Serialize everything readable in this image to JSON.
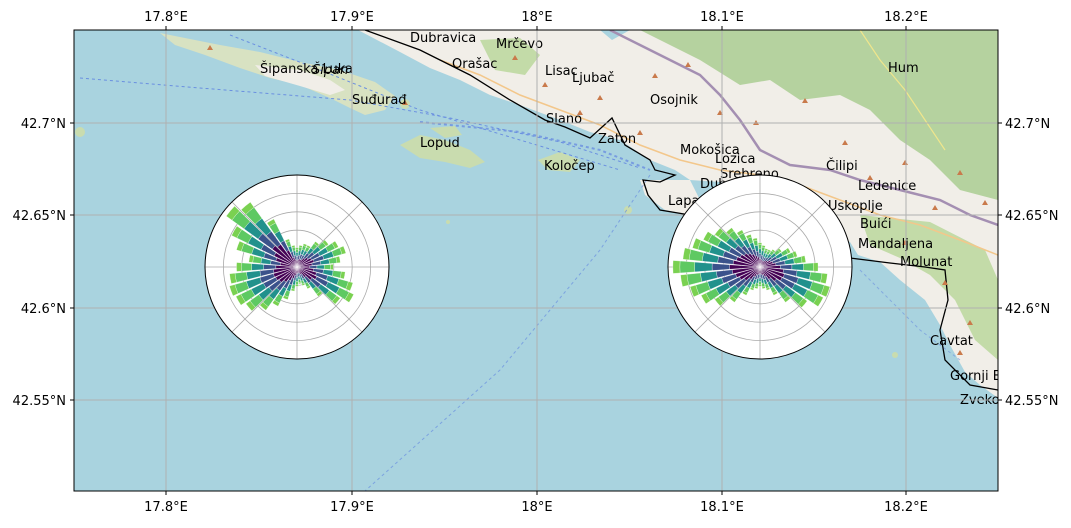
{
  "map": {
    "x_ticks": [
      "17.8°E",
      "17.9°E",
      "18°E",
      "18.1°E",
      "18.2°E"
    ],
    "y_ticks": [
      "42.7°N",
      "42.65°N",
      "42.6°N",
      "42.55°N"
    ],
    "colors": {
      "sea": "#a9d3df",
      "land": "#f1eee8",
      "forest": "#b5d29f",
      "grid": "#b0b0b0",
      "border": "#000000",
      "ferry": "#6a8fe0",
      "rose_ring": "#aaaaaa"
    },
    "place_labels": {
      "sipan": "Šipan",
      "sudurad": "Suđurađ",
      "lopud": "Lopud",
      "kolocep": "Koločep",
      "lapad": "Lapad",
      "dubrovnik": "Dubrovnik",
      "mrcevo": "Mrčevo",
      "ljubac": "Ljubač",
      "osojnik": "Osojnik",
      "zaton": "Zaton",
      "slano": "Slano",
      "mokosica": "Mokošica",
      "cilipi": "Čilipi",
      "cavtat": "Cavtat",
      "mandaljena": "Mandaljena",
      "hum": "Hum",
      "dubravica": "Dubravica",
      "sipanska_luka": "Šipanska Luka",
      "orasac": "Orašac",
      "lisac": "Lisac",
      "lozica": "Lozica",
      "srebreno": "Srebreno",
      "buici": "Buići",
      "ledenice": "Ledenice",
      "uskoplje": "Uskoplje",
      "molunat": "Molunat",
      "gornji_brgat": "Gornji Brgat",
      "zvekovica": "Zvekovica"
    }
  },
  "chart_data": [
    {
      "type": "windrose",
      "location": "west rose",
      "title": "",
      "n_directions": 36,
      "direction_bins_deg": [
        0,
        10,
        20,
        30,
        40,
        50,
        60,
        70,
        80,
        90,
        100,
        110,
        120,
        130,
        140,
        150,
        160,
        170,
        180,
        190,
        200,
        210,
        220,
        230,
        240,
        250,
        260,
        270,
        280,
        290,
        300,
        310,
        320,
        330,
        340,
        350
      ],
      "colormap": [
        "#440154",
        "#3b528b",
        "#21918c",
        "#5ec962",
        "#7ad151"
      ],
      "totals": [
        0.8,
        0.9,
        1.0,
        1.0,
        1.3,
        1.6,
        1.9,
        2.1,
        1.8,
        1.5,
        2.0,
        2.4,
        2.6,
        2.2,
        1.5,
        1.0,
        0.8,
        0.7,
        0.8,
        1.0,
        1.4,
        1.8,
        2.2,
        2.6,
        2.8,
        2.9,
        2.8,
        2.5,
        2.0,
        2.6,
        3.0,
        3.6,
        3.3,
        2.2,
        1.2,
        0.9
      ],
      "r_max": 3.8
    },
    {
      "type": "windrose",
      "location": "east rose",
      "title": "",
      "n_directions": 36,
      "direction_bins_deg": [
        0,
        10,
        20,
        30,
        40,
        50,
        60,
        70,
        80,
        90,
        100,
        110,
        120,
        130,
        140,
        150,
        160,
        170,
        180,
        190,
        200,
        210,
        220,
        230,
        240,
        250,
        260,
        270,
        280,
        290,
        300,
        310,
        320,
        330,
        340,
        350
      ],
      "colormap": [
        "#440154",
        "#3b528b",
        "#21918c",
        "#5ec962",
        "#7ad151"
      ],
      "totals": [
        1.0,
        0.9,
        0.8,
        0.8,
        0.9,
        1.1,
        1.4,
        1.6,
        1.9,
        2.4,
        2.8,
        3.0,
        2.9,
        2.4,
        1.8,
        1.3,
        1.0,
        0.9,
        0.8,
        0.9,
        1.0,
        1.3,
        1.8,
        2.3,
        2.7,
        3.0,
        3.3,
        3.6,
        3.2,
        2.9,
        2.6,
        2.3,
        2.0,
        1.7,
        1.4,
        1.2
      ],
      "r_max": 3.8
    }
  ]
}
